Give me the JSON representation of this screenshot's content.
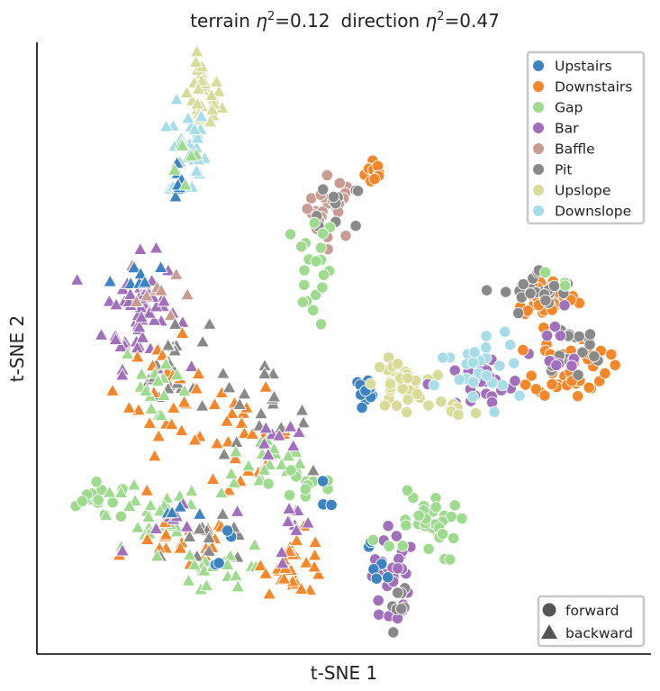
{
  "chart_data": {
    "type": "scatter",
    "title_parts": {
      "a": "terrain ",
      "eta_a": "η",
      "sup_a": "2",
      "val_a": "=0.12",
      "b": "direction ",
      "eta_b": "η",
      "sup_b": "2",
      "val_b": "=0.47"
    },
    "xlabel": "t-SNE 1",
    "ylabel": "t-SNE 2",
    "xlim": [
      0,
      100
    ],
    "ylim": [
      0,
      100
    ],
    "grid": false,
    "legend_position": "top-right",
    "shape_legend_position": "bottom-right",
    "categories": [
      {
        "name": "Upstairs",
        "color": "#3b84c1"
      },
      {
        "name": "Downstairs",
        "color": "#f5862a"
      },
      {
        "name": "Gap",
        "color": "#9fdb8e"
      },
      {
        "name": "Bar",
        "color": "#a26fbd"
      },
      {
        "name": "Baffle",
        "color": "#c89c92"
      },
      {
        "name": "Pit",
        "color": "#898989"
      },
      {
        "name": "Upslope",
        "color": "#d9db99"
      },
      {
        "name": "Downslope",
        "color": "#a7dde8"
      }
    ],
    "markers": [
      {
        "name": "forward",
        "shape": "circle"
      },
      {
        "name": "backward",
        "shape": "triangle"
      }
    ],
    "clusters": [
      {
        "cat": 1,
        "m": 0,
        "n": 14,
        "cx": 55.0,
        "cy": 79.0,
        "sx": 0.8,
        "sy": 1.2
      },
      {
        "cat": 4,
        "m": 0,
        "n": 24,
        "cx": 48.0,
        "cy": 73.0,
        "sx": 2.0,
        "sy": 2.6
      },
      {
        "cat": 5,
        "m": 0,
        "n": 10,
        "cx": 49.0,
        "cy": 72.0,
        "sx": 2.0,
        "sy": 2.6
      },
      {
        "cat": 2,
        "m": 0,
        "n": 20,
        "cx": 45.0,
        "cy": 63.0,
        "sx": 1.8,
        "sy": 4.5
      },
      {
        "cat": 6,
        "m": 1,
        "n": 30,
        "cx": 27.0,
        "cy": 91.0,
        "sx": 1.5,
        "sy": 3.0
      },
      {
        "cat": 7,
        "m": 1,
        "n": 30,
        "cx": 24.5,
        "cy": 82.0,
        "sx": 1.5,
        "sy": 4.0
      },
      {
        "cat": 0,
        "m": 1,
        "n": 8,
        "cx": 22.5,
        "cy": 79.0,
        "sx": 1.0,
        "sy": 2.5
      },
      {
        "cat": 2,
        "m": 1,
        "n": 6,
        "cx": 24.0,
        "cy": 80.0,
        "sx": 1.5,
        "sy": 3.0
      },
      {
        "cat": 3,
        "m": 1,
        "n": 60,
        "cx": 17.0,
        "cy": 56.0,
        "sx": 3.0,
        "sy": 4.5
      },
      {
        "cat": 4,
        "m": 1,
        "n": 10,
        "cx": 20.0,
        "cy": 60.0,
        "sx": 2.5,
        "sy": 3.0
      },
      {
        "cat": 0,
        "m": 1,
        "n": 8,
        "cx": 16.0,
        "cy": 62.0,
        "sx": 2.0,
        "sy": 1.5
      },
      {
        "cat": 5,
        "m": 1,
        "n": 22,
        "cx": 22.0,
        "cy": 47.0,
        "sx": 3.0,
        "sy": 4.0
      },
      {
        "cat": 1,
        "m": 1,
        "n": 25,
        "cx": 21.0,
        "cy": 42.0,
        "sx": 3.0,
        "sy": 4.5
      },
      {
        "cat": 2,
        "m": 1,
        "n": 15,
        "cx": 20.0,
        "cy": 44.0,
        "sx": 3.0,
        "sy": 4.0
      },
      {
        "cat": 1,
        "m": 1,
        "n": 25,
        "cx": 33.0,
        "cy": 36.0,
        "sx": 4.5,
        "sy": 3.5
      },
      {
        "cat": 5,
        "m": 1,
        "n": 18,
        "cx": 36.0,
        "cy": 39.0,
        "sx": 4.0,
        "sy": 3.5
      },
      {
        "cat": 2,
        "m": 1,
        "n": 22,
        "cx": 38.0,
        "cy": 31.0,
        "sx": 4.0,
        "sy": 2.5
      },
      {
        "cat": 3,
        "m": 1,
        "n": 8,
        "cx": 39.0,
        "cy": 36.0,
        "sx": 3.0,
        "sy": 3.0
      },
      {
        "cat": 2,
        "m": 0,
        "n": 12,
        "cx": 44.0,
        "cy": 28.0,
        "sx": 3.0,
        "sy": 2.0
      },
      {
        "cat": 0,
        "m": 0,
        "n": 3,
        "cx": 47.0,
        "cy": 25.0,
        "sx": 1.0,
        "sy": 1.0
      },
      {
        "cat": 2,
        "m": 0,
        "n": 14,
        "cx": 10.5,
        "cy": 25.0,
        "sx": 3.5,
        "sy": 1.5
      },
      {
        "cat": 2,
        "m": 1,
        "n": 26,
        "cx": 18.0,
        "cy": 22.0,
        "sx": 4.5,
        "sy": 3.0
      },
      {
        "cat": 1,
        "m": 1,
        "n": 22,
        "cx": 24.0,
        "cy": 18.0,
        "sx": 4.0,
        "sy": 2.0
      },
      {
        "cat": 5,
        "m": 1,
        "n": 12,
        "cx": 29.0,
        "cy": 18.0,
        "sx": 4.0,
        "sy": 2.0
      },
      {
        "cat": 3,
        "m": 1,
        "n": 8,
        "cx": 23.0,
        "cy": 22.0,
        "sx": 4.0,
        "sy": 2.0
      },
      {
        "cat": 2,
        "m": 1,
        "n": 20,
        "cx": 31.0,
        "cy": 14.0,
        "sx": 4.0,
        "sy": 2.0
      },
      {
        "cat": 1,
        "m": 1,
        "n": 28,
        "cx": 42.0,
        "cy": 15.0,
        "sx": 2.5,
        "sy": 2.5
      },
      {
        "cat": 3,
        "m": 1,
        "n": 10,
        "cx": 42.0,
        "cy": 20.0,
        "sx": 1.5,
        "sy": 2.5
      },
      {
        "cat": 0,
        "m": 1,
        "n": 4,
        "cx": 20.0,
        "cy": 24.0,
        "sx": 5.0,
        "sy": 2.0
      },
      {
        "cat": 0,
        "m": 0,
        "n": 4,
        "cx": 30.0,
        "cy": 17.0,
        "sx": 3.5,
        "sy": 2.0
      },
      {
        "cat": 0,
        "m": 0,
        "n": 10,
        "cx": 53.5,
        "cy": 43.5,
        "sx": 1.0,
        "sy": 0.8
      },
      {
        "cat": 6,
        "m": 0,
        "n": 40,
        "cx": 59.0,
        "cy": 44.0,
        "sx": 2.0,
        "sy": 2.0
      },
      {
        "cat": 3,
        "m": 0,
        "n": 26,
        "cx": 72.0,
        "cy": 44.0,
        "sx": 4.0,
        "sy": 2.5
      },
      {
        "cat": 7,
        "m": 0,
        "n": 20,
        "cx": 72.0,
        "cy": 45.0,
        "sx": 3.5,
        "sy": 3.0
      },
      {
        "cat": 6,
        "m": 0,
        "n": 8,
        "cx": 68.0,
        "cy": 40.0,
        "sx": 2.0,
        "sy": 1.5
      },
      {
        "cat": 1,
        "m": 0,
        "n": 40,
        "cx": 83.0,
        "cy": 58.5,
        "sx": 2.5,
        "sy": 1.8
      },
      {
        "cat": 5,
        "m": 0,
        "n": 22,
        "cx": 82.0,
        "cy": 59.0,
        "sx": 3.0,
        "sy": 2.0
      },
      {
        "cat": 1,
        "m": 0,
        "n": 45,
        "cx": 87.0,
        "cy": 47.0,
        "sx": 3.0,
        "sy": 2.5
      },
      {
        "cat": 5,
        "m": 0,
        "n": 18,
        "cx": 87.0,
        "cy": 49.0,
        "sx": 3.0,
        "sy": 3.0
      },
      {
        "cat": 3,
        "m": 0,
        "n": 10,
        "cx": 84.0,
        "cy": 50.0,
        "sx": 3.0,
        "sy": 3.0
      },
      {
        "cat": 7,
        "m": 0,
        "n": 6,
        "cx": 73.0,
        "cy": 50.0,
        "sx": 2.0,
        "sy": 1.5
      },
      {
        "cat": 2,
        "m": 0,
        "n": 3,
        "cx": 84.0,
        "cy": 61.0,
        "sx": 1.5,
        "sy": 0.8
      },
      {
        "cat": 2,
        "m": 0,
        "n": 28,
        "cx": 64.0,
        "cy": 21.0,
        "sx": 2.2,
        "sy": 3.0
      },
      {
        "cat": 3,
        "m": 0,
        "n": 28,
        "cx": 57.5,
        "cy": 13.0,
        "sx": 1.5,
        "sy": 4.5
      },
      {
        "cat": 0,
        "m": 0,
        "n": 6,
        "cx": 56.0,
        "cy": 16.0,
        "sx": 1.0,
        "sy": 4.0
      },
      {
        "cat": 5,
        "m": 0,
        "n": 8,
        "cx": 58.5,
        "cy": 8.0,
        "sx": 1.0,
        "sy": 2.0
      },
      {
        "cat": 2,
        "m": 0,
        "n": 4,
        "cx": 58.0,
        "cy": 18.0,
        "sx": 1.5,
        "sy": 1.5
      }
    ]
  }
}
